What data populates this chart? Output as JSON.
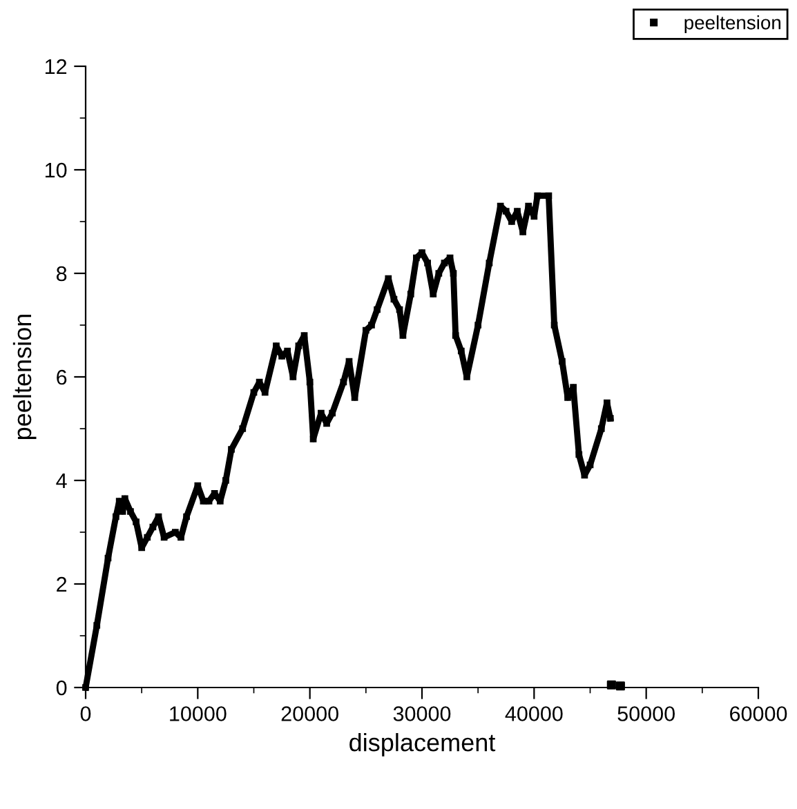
{
  "chart_data": {
    "type": "line",
    "xlabel": "displacement",
    "ylabel": "peeltension",
    "xlim": [
      0,
      60000
    ],
    "xticks": [
      0,
      10000,
      20000,
      30000,
      40000,
      50000,
      60000
    ],
    "ylim": [
      0,
      12
    ],
    "yticks": [
      0,
      2,
      4,
      6,
      8,
      10,
      12
    ],
    "marker": "square",
    "line_style": "solid",
    "grid": false,
    "legend": "top right",
    "x": [
      0,
      1000,
      2000,
      2700,
      3000,
      3300,
      3500,
      4000,
      4500,
      5000,
      5500,
      6000,
      6500,
      7000,
      8000,
      8500,
      9000,
      10000,
      10500,
      11000,
      11500,
      12000,
      12500,
      13000,
      14000,
      15000,
      15500,
      16000,
      17000,
      17500,
      18000,
      18500,
      19000,
      19500,
      20000,
      20300,
      21000,
      21500,
      22000,
      23000,
      23500,
      24000,
      25000,
      25500,
      26000,
      27000,
      27500,
      28000,
      28300,
      29000,
      29500,
      30000,
      30500,
      31000,
      31500,
      32000,
      32500,
      32800,
      33000,
      33500,
      34000,
      35000,
      36000,
      37000,
      37500,
      38000,
      38500,
      39000,
      39500,
      40000,
      40300,
      41300,
      41800,
      42500,
      43000,
      43500,
      44000,
      44500,
      45000,
      46000,
      46500,
      46800
    ],
    "series": [
      {
        "name": "peeltension",
        "color": "#000000",
        "values": [
          0,
          1.2,
          2.5,
          3.3,
          3.6,
          3.4,
          3.65,
          3.4,
          3.2,
          2.7,
          2.9,
          3.1,
          3.3,
          2.9,
          3.0,
          2.9,
          3.3,
          3.9,
          3.6,
          3.6,
          3.75,
          3.6,
          4.0,
          4.6,
          5.0,
          5.7,
          5.9,
          5.7,
          6.6,
          6.4,
          6.5,
          6.0,
          6.6,
          6.8,
          5.9,
          4.8,
          5.3,
          5.1,
          5.3,
          5.9,
          6.3,
          5.6,
          6.9,
          7.0,
          7.3,
          7.9,
          7.5,
          7.3,
          6.8,
          7.6,
          8.3,
          8.4,
          8.2,
          7.6,
          8.0,
          8.2,
          8.3,
          8.0,
          6.8,
          6.5,
          6.0,
          7.0,
          8.2,
          9.3,
          9.2,
          9.0,
          9.2,
          8.8,
          9.3,
          9.1,
          9.5,
          9.5,
          7.0,
          6.3,
          5.6,
          5.8,
          4.5,
          4.1,
          4.3,
          5.0,
          5.5,
          5.2
        ]
      },
      {
        "type": "scatter",
        "color": "#000000",
        "x": [
          46900,
          47700
        ],
        "values": [
          0.05,
          0.03
        ]
      }
    ]
  }
}
